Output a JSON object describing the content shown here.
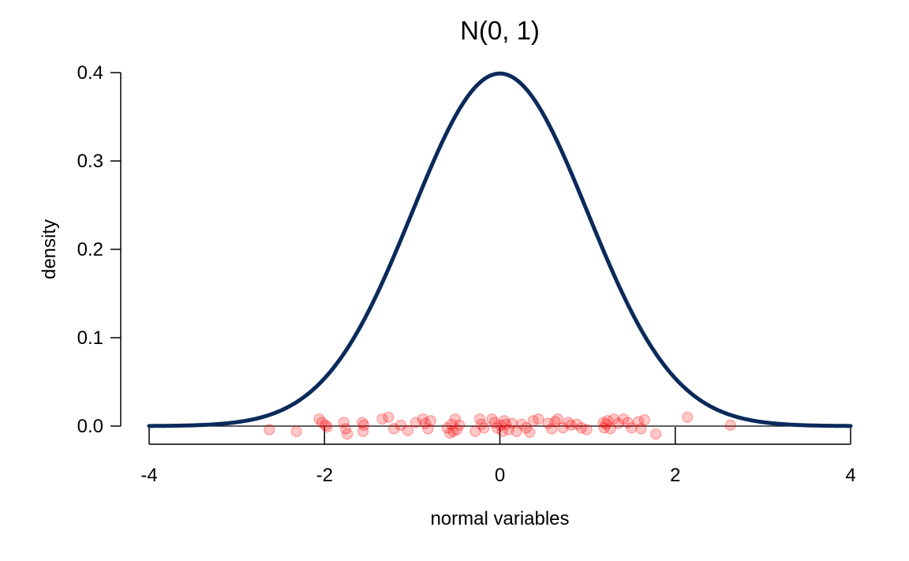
{
  "chart_data": {
    "type": "line",
    "title": "N(0, 1)",
    "xlabel": "normal variables",
    "ylabel": "density",
    "xlim": [
      -4,
      4
    ],
    "ylim": [
      0,
      0.4
    ],
    "x_ticks": [
      -4,
      -2,
      0,
      2,
      4
    ],
    "x_tick_labels": [
      "-4",
      "-2",
      "0",
      "2",
      "4"
    ],
    "y_ticks": [
      0.0,
      0.1,
      0.2,
      0.3,
      0.4
    ],
    "y_tick_labels": [
      "0.0",
      "0.1",
      "0.2",
      "0.3",
      "0.4"
    ],
    "grid": false,
    "series": [
      {
        "kind": "density",
        "distribution": "normal",
        "mean": 0,
        "sd": 1,
        "color": "#0a2a5a"
      }
    ],
    "samples": {
      "color": "#ff0000",
      "opacity": 0.22,
      "points": [
        [
          -2.63,
          -0.004
        ],
        [
          -2.32,
          -0.006
        ],
        [
          -2.06,
          0.008
        ],
        [
          -2.03,
          0.004
        ],
        [
          -1.99,
          0.001
        ],
        [
          -1.97,
          -0.001
        ],
        [
          -1.78,
          0.004
        ],
        [
          -1.76,
          -0.003
        ],
        [
          -1.74,
          -0.009
        ],
        [
          -1.57,
          0.004
        ],
        [
          -1.56,
          -0.006
        ],
        [
          -1.55,
          0.001
        ],
        [
          -1.34,
          0.008
        ],
        [
          -1.27,
          0.01
        ],
        [
          -1.21,
          -0.003
        ],
        [
          -1.13,
          0.001
        ],
        [
          -1.05,
          -0.005
        ],
        [
          -0.96,
          0.004
        ],
        [
          -0.88,
          0.008
        ],
        [
          -0.85,
          0.003
        ],
        [
          -0.82,
          -0.003
        ],
        [
          -0.79,
          0.006
        ],
        [
          -0.6,
          -0.002
        ],
        [
          -0.57,
          -0.008
        ],
        [
          -0.55,
          0.002
        ],
        [
          -0.53,
          -0.006
        ],
        [
          -0.51,
          0.008
        ],
        [
          -0.49,
          -0.004
        ],
        [
          -0.46,
          0.001
        ],
        [
          -0.28,
          -0.006
        ],
        [
          -0.23,
          0.008
        ],
        [
          -0.21,
          0.002
        ],
        [
          -0.18,
          -0.002
        ],
        [
          -0.09,
          0.008
        ],
        [
          -0.06,
          0.004
        ],
        [
          -0.03,
          -0.002
        ],
        [
          0.01,
          0.001
        ],
        [
          0.03,
          -0.006
        ],
        [
          0.05,
          0.006
        ],
        [
          0.07,
          0.002
        ],
        [
          0.1,
          -0.004
        ],
        [
          0.14,
          0.003
        ],
        [
          0.19,
          -0.006
        ],
        [
          0.25,
          0.002
        ],
        [
          0.3,
          -0.002
        ],
        [
          0.34,
          -0.007
        ],
        [
          0.38,
          0.006
        ],
        [
          0.44,
          0.008
        ],
        [
          0.55,
          0.003
        ],
        [
          0.59,
          -0.003
        ],
        [
          0.63,
          0.005
        ],
        [
          0.66,
          0.008
        ],
        [
          0.72,
          -0.002
        ],
        [
          0.78,
          0.004
        ],
        [
          0.81,
          0.001
        ],
        [
          0.88,
          0.002
        ],
        [
          0.93,
          -0.002
        ],
        [
          0.99,
          -0.004
        ],
        [
          1.18,
          0.004
        ],
        [
          1.19,
          -0.002
        ],
        [
          1.21,
          0.002
        ],
        [
          1.23,
          0.006
        ],
        [
          1.26,
          -0.003
        ],
        [
          1.3,
          0.008
        ],
        [
          1.35,
          0.003
        ],
        [
          1.41,
          0.008
        ],
        [
          1.46,
          0.004
        ],
        [
          1.5,
          -0.002
        ],
        [
          1.58,
          0.005
        ],
        [
          1.61,
          -0.003
        ],
        [
          1.65,
          0.007
        ],
        [
          1.78,
          -0.009
        ],
        [
          2.14,
          0.01
        ],
        [
          2.63,
          0.001
        ]
      ]
    }
  }
}
